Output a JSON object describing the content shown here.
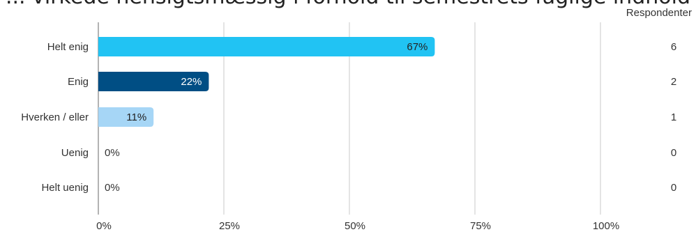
{
  "chart_data": {
    "type": "bar",
    "orientation": "horizontal",
    "title": "... virkede hensigtsmæssig i forhold til semestrets faglige indhold",
    "categories": [
      "Helt enig",
      "Enig",
      "Hverken / eller",
      "Uenig",
      "Helt uenig"
    ],
    "values": [
      67,
      22,
      11,
      0,
      0
    ],
    "value_labels": [
      "67%",
      "22%",
      "11%",
      "0%",
      "0%"
    ],
    "respondents_header": "Respondenter",
    "respondents": [
      "6",
      "2",
      "1",
      "0",
      "0"
    ],
    "xlim": [
      0,
      100
    ],
    "x_ticks": [
      0,
      25,
      50,
      75,
      100
    ],
    "x_tick_labels": [
      "0%",
      "25%",
      "50%",
      "75%",
      "100%"
    ],
    "grid": true,
    "colors": [
      "#21c3f3",
      "#004e84",
      "#a6d6f6",
      "#21c3f3",
      "#21c3f3"
    ],
    "label_colors": [
      "#222222",
      "#ffffff",
      "#222222",
      "#333333",
      "#333333"
    ]
  }
}
